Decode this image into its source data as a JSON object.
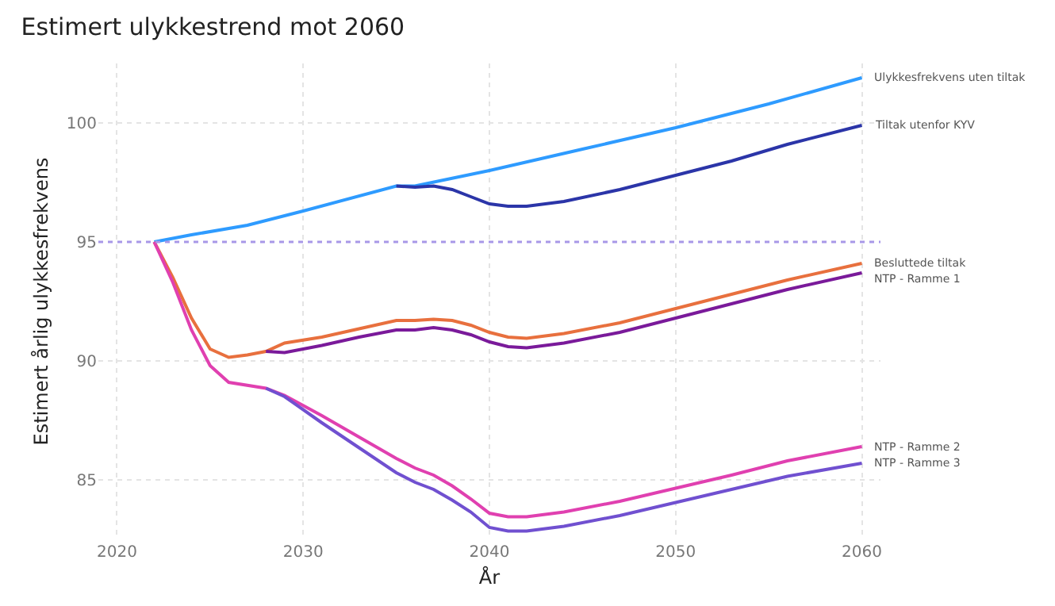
{
  "chart_data": {
    "type": "line",
    "title": "Estimert ulykkestrend mot 2060",
    "xlabel": "År",
    "ylabel": "Estimert årlig ulykkesfrekvens",
    "xlim": [
      2019,
      2061
    ],
    "xticks": [
      2020,
      2030,
      2040,
      2050,
      2060
    ],
    "ylim": [
      82.5,
      102.5
    ],
    "yticks": [
      85,
      90,
      95,
      100
    ],
    "grid": true,
    "legend": false,
    "marker": "none",
    "line_style": "solid",
    "ref_lines": [
      {
        "axis": "y",
        "value": 95,
        "color": "#a898e8",
        "line_style": "dotted"
      }
    ],
    "series": [
      {
        "name": "Ulykkesfrekvens uten tiltak",
        "color": "#2e9bff",
        "x": [
          2022,
          2024,
          2027,
          2030,
          2035,
          2036,
          2040,
          2045,
          2050,
          2055,
          2060
        ],
        "values": [
          95,
          95.3,
          95.7,
          96.3,
          97.35,
          97.35,
          98.0,
          98.9,
          99.8,
          100.8,
          101.9
        ]
      },
      {
        "name": "Tiltak utenfor KYV",
        "color": "#2b35a8",
        "x": [
          2035,
          2036,
          2037,
          2038,
          2039,
          2040,
          2041,
          2042,
          2044,
          2047,
          2050,
          2053,
          2056,
          2060
        ],
        "values": [
          97.35,
          97.3,
          97.35,
          97.2,
          96.9,
          96.6,
          96.5,
          96.5,
          96.7,
          97.2,
          97.8,
          98.4,
          99.1,
          99.9
        ]
      },
      {
        "name": "Besluttede tiltak",
        "color": "#e8703e",
        "x": [
          2022,
          2023,
          2024,
          2025,
          2026,
          2027,
          2028,
          2029,
          2031,
          2033,
          2035,
          2036,
          2037,
          2038,
          2039,
          2040,
          2041,
          2042,
          2044,
          2047,
          2050,
          2053,
          2056,
          2060
        ],
        "values": [
          95,
          93.5,
          91.8,
          90.5,
          90.15,
          90.25,
          90.4,
          90.75,
          91.0,
          91.35,
          91.7,
          91.7,
          91.75,
          91.7,
          91.5,
          91.2,
          91.0,
          90.95,
          91.15,
          91.6,
          92.2,
          92.8,
          93.4,
          94.1
        ]
      },
      {
        "name": "NTP - Ramme 1",
        "color": "#7a1a9a",
        "x": [
          2028,
          2029,
          2031,
          2033,
          2035,
          2036,
          2037,
          2038,
          2039,
          2040,
          2041,
          2042,
          2044,
          2047,
          2050,
          2053,
          2056,
          2060
        ],
        "values": [
          90.4,
          90.35,
          90.65,
          91.0,
          91.3,
          91.3,
          91.4,
          91.3,
          91.1,
          90.8,
          90.6,
          90.55,
          90.75,
          91.2,
          91.8,
          92.4,
          93.0,
          93.7
        ]
      },
      {
        "name": "NTP - Ramme 2",
        "color": "#e040b0",
        "x": [
          2022,
          2023,
          2024,
          2025,
          2026,
          2028,
          2029,
          2031,
          2033,
          2035,
          2036,
          2037,
          2038,
          2039,
          2040,
          2041,
          2042,
          2044,
          2047,
          2050,
          2053,
          2056,
          2060
        ],
        "values": [
          95,
          93.3,
          91.3,
          89.8,
          89.1,
          88.85,
          88.55,
          87.7,
          86.8,
          85.9,
          85.5,
          85.2,
          84.75,
          84.2,
          83.6,
          83.45,
          83.45,
          83.65,
          84.1,
          84.65,
          85.2,
          85.8,
          86.4
        ]
      },
      {
        "name": "NTP - Ramme 3",
        "color": "#7050d0",
        "x": [
          2028,
          2029,
          2031,
          2033,
          2035,
          2036,
          2037,
          2038,
          2039,
          2040,
          2041,
          2042,
          2044,
          2047,
          2050,
          2053,
          2056,
          2060
        ],
        "values": [
          88.85,
          88.5,
          87.4,
          86.35,
          85.3,
          84.9,
          84.6,
          84.15,
          83.65,
          83.0,
          82.85,
          82.85,
          83.05,
          83.5,
          84.05,
          84.6,
          85.15,
          85.7
        ]
      }
    ]
  }
}
